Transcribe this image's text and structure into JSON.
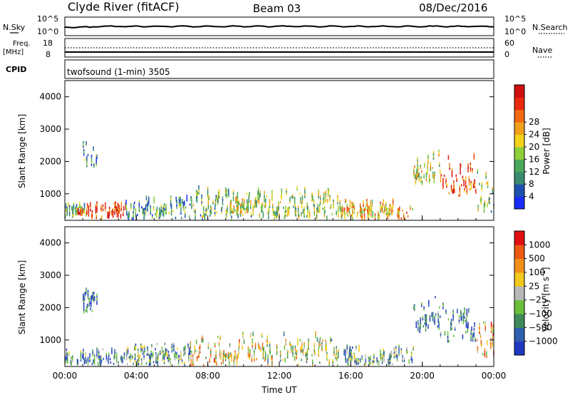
{
  "header": {
    "station": "Clyde River (fitACF)",
    "beam": "Beam 03",
    "date": "08/Dec/2016"
  },
  "sky_panel": {
    "left_label": "N.Sky",
    "right_label": "N.Search",
    "left_ticks": [
      "10^5",
      "10^0"
    ],
    "right_ticks": [
      "10^5",
      "10^0"
    ]
  },
  "freq_panel": {
    "left_label_1": "Freq.",
    "left_label_2": "[MHz]",
    "left_ticks": [
      "18",
      "8"
    ],
    "right_label": "Nave",
    "right_ticks": [
      "60",
      "0"
    ]
  },
  "cpid_panel": {
    "label": "CPID",
    "program": "twofsound (1-min) 3505"
  },
  "chart_data": [
    {
      "type": "heatmap",
      "quantity": "Power",
      "ylabel": "Slant Range [km]",
      "xlabel": "Time UT",
      "xlim_hours": [
        0,
        24
      ],
      "ylim": [
        180,
        4500
      ],
      "y_ticks": [
        1000,
        2000,
        3000,
        4000
      ],
      "x_ticks": [
        "00:00",
        "04:00",
        "08:00",
        "12:00",
        "16:00",
        "20:00",
        "00:00"
      ],
      "colorbar": {
        "label": "Power [dB]",
        "ticks": [
          4,
          8,
          12,
          16,
          20,
          24,
          28
        ],
        "colors": [
          "#1a2cff",
          "#1f4fb0",
          "#3a8a6e",
          "#4aa85a",
          "#8fcf3a",
          "#f2d21a",
          "#f2a01a",
          "#f26a10",
          "#ea2a10",
          "#d01010"
        ]
      },
      "echo_regions": [
        {
          "t0": 0.0,
          "t1": 1.2,
          "r0": 180,
          "r1": 700,
          "level": 0.35
        },
        {
          "t0": 0.6,
          "t1": 1.0,
          "r0": 250,
          "r1": 500,
          "level": 0.9
        },
        {
          "t0": 1.0,
          "t1": 1.8,
          "r0": 1800,
          "r1": 2600,
          "level": 0.3
        },
        {
          "t0": 1.2,
          "t1": 3.4,
          "r0": 180,
          "r1": 700,
          "level": 0.85
        },
        {
          "t0": 3.4,
          "t1": 7.0,
          "r0": 180,
          "r1": 900,
          "level": 0.3
        },
        {
          "t0": 7.0,
          "t1": 10.5,
          "r0": 180,
          "r1": 1200,
          "level": 0.4
        },
        {
          "t0": 9.2,
          "t1": 10.2,
          "r0": 300,
          "r1": 900,
          "level": 0.55
        },
        {
          "t0": 10.5,
          "t1": 15.5,
          "r0": 180,
          "r1": 1200,
          "level": 0.45
        },
        {
          "t0": 15.5,
          "t1": 19.5,
          "r0": 180,
          "r1": 800,
          "level": 0.6
        },
        {
          "t0": 19.5,
          "t1": 21.0,
          "r0": 1200,
          "r1": 2300,
          "level": 0.5
        },
        {
          "t0": 21.0,
          "t1": 23.0,
          "r0": 900,
          "r1": 2200,
          "level": 0.8
        },
        {
          "t0": 23.0,
          "t1": 24.0,
          "r0": 400,
          "r1": 1900,
          "level": 0.4
        }
      ]
    },
    {
      "type": "heatmap",
      "quantity": "Velocity",
      "ylabel": "Slant Range [km]",
      "xlabel": "Time UT",
      "xlim_hours": [
        0,
        24
      ],
      "ylim": [
        180,
        4500
      ],
      "y_ticks": [
        1000,
        2000,
        3000,
        4000
      ],
      "x_ticks": [
        "00:00",
        "04:00",
        "08:00",
        "12:00",
        "16:00",
        "20:00",
        "00:00"
      ],
      "colorbar": {
        "label": "Velocity [m s^-1]",
        "ticks": [
          "1000",
          "500",
          "100",
          "25",
          "−25",
          "−100",
          "−500",
          "−1000"
        ],
        "colors": [
          "#2038c0",
          "#2f5fb0",
          "#3f8a5a",
          "#6abf3a",
          "#b8b8b8",
          "#f2c81a",
          "#f2901a",
          "#ec5a14",
          "#e01010"
        ]
      },
      "echo_regions": [
        {
          "t0": 0.0,
          "t1": 1.2,
          "r0": 180,
          "r1": 700,
          "level": 0.3
        },
        {
          "t0": 1.0,
          "t1": 1.8,
          "r0": 1800,
          "r1": 2600,
          "level": 0.2
        },
        {
          "t0": 1.2,
          "t1": 3.4,
          "r0": 180,
          "r1": 700,
          "level": 0.2
        },
        {
          "t0": 3.4,
          "t1": 7.0,
          "r0": 180,
          "r1": 900,
          "level": 0.35
        },
        {
          "t0": 7.0,
          "t1": 10.5,
          "r0": 180,
          "r1": 1200,
          "level": 0.6
        },
        {
          "t0": 10.5,
          "t1": 15.5,
          "r0": 180,
          "r1": 1200,
          "level": 0.5
        },
        {
          "t0": 15.5,
          "t1": 19.5,
          "r0": 180,
          "r1": 800,
          "level": 0.35
        },
        {
          "t0": 19.5,
          "t1": 21.0,
          "r0": 1200,
          "r1": 2300,
          "level": 0.15
        },
        {
          "t0": 21.0,
          "t1": 23.0,
          "r0": 900,
          "r1": 2200,
          "level": 0.2
        },
        {
          "t0": 23.0,
          "t1": 24.0,
          "r0": 400,
          "r1": 1900,
          "level": 0.65
        }
      ]
    }
  ]
}
